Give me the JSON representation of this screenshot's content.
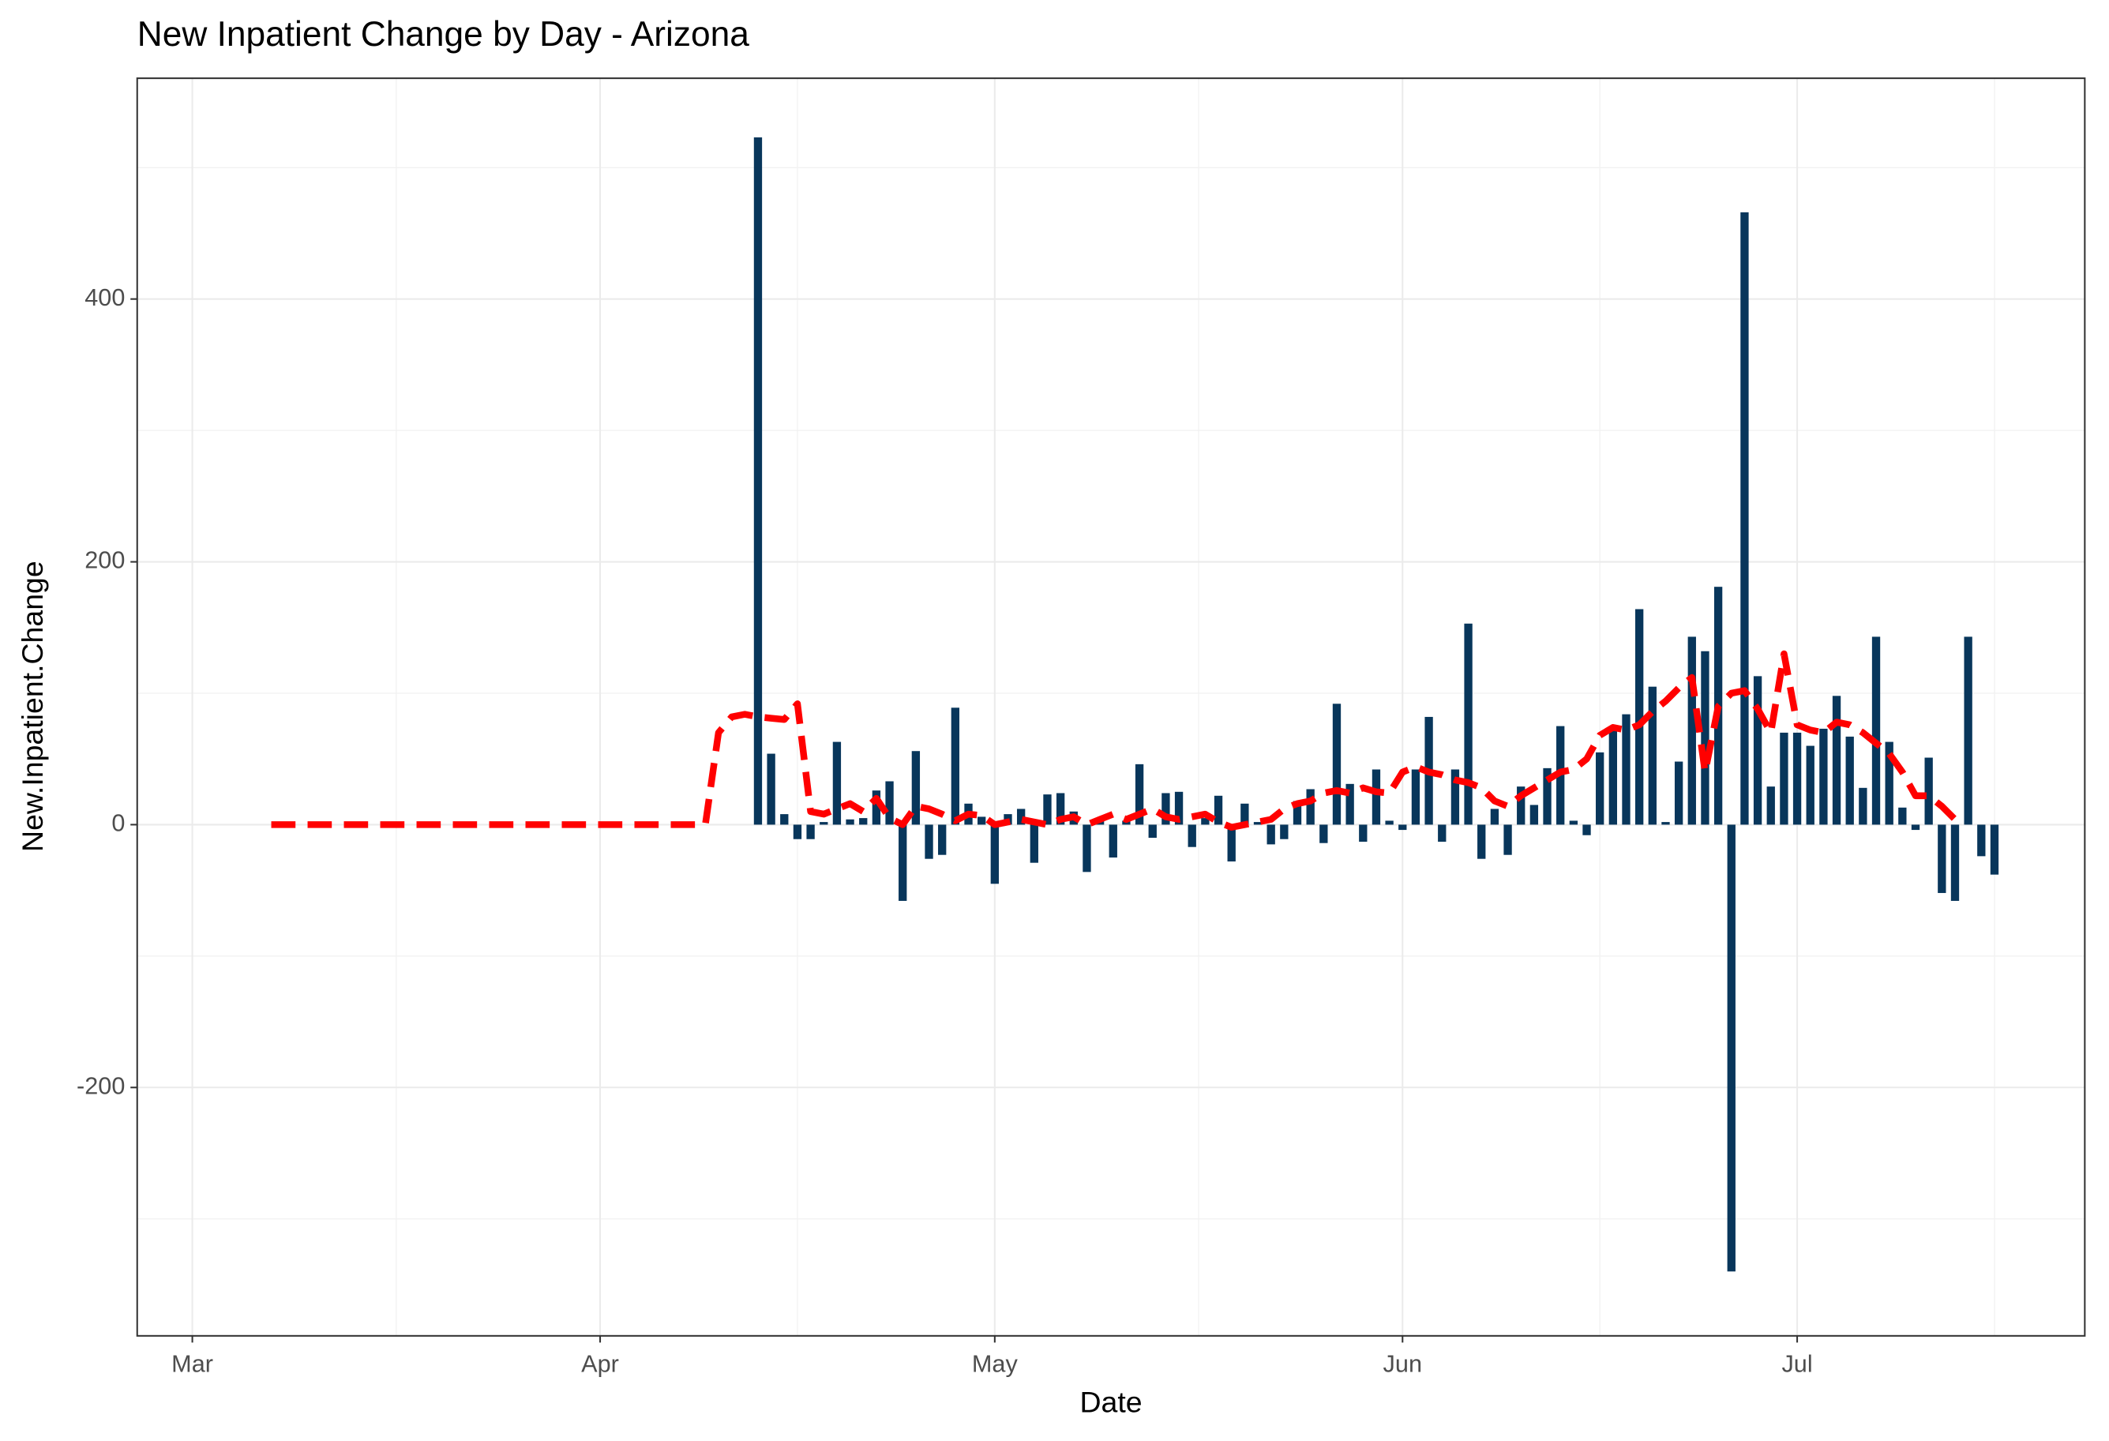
{
  "chart_data": {
    "type": "bar",
    "title": "New Inpatient Change by Day - Arizona",
    "x_label": "Date",
    "y_label": "New.Inpatient.Change",
    "categories": [
      "Mar",
      null,
      null,
      null,
      null,
      null,
      null,
      null,
      null,
      null,
      null,
      null,
      null,
      null,
      null,
      null,
      null,
      null,
      null,
      null,
      null,
      null,
      null,
      null,
      null,
      null,
      null,
      null,
      null,
      null,
      null,
      "Apr",
      null,
      null,
      null,
      null,
      null,
      null,
      null,
      null,
      null,
      null,
      null,
      null,
      null,
      null,
      null,
      null,
      null,
      null,
      null,
      null,
      null,
      null,
      null,
      null,
      null,
      null,
      null,
      null,
      null,
      "May",
      null,
      null,
      null,
      null,
      null,
      null,
      null,
      null,
      null,
      null,
      null,
      null,
      null,
      null,
      null,
      null,
      null,
      null,
      null,
      null,
      null,
      null,
      null,
      null,
      null,
      null,
      null,
      null,
      null,
      null,
      "Jun",
      null,
      null,
      null,
      null,
      null,
      null,
      null,
      null,
      null,
      null,
      null,
      null,
      null,
      null,
      null,
      null,
      null,
      null,
      null,
      null,
      null,
      null,
      null,
      null,
      null,
      null,
      null,
      null,
      null,
      "Jul",
      null,
      null,
      null,
      null,
      null,
      null,
      null,
      null,
      null,
      null,
      null,
      null,
      null,
      null,
      null
    ],
    "series": [
      {
        "type": "bar",
        "color": "#08365b",
        "values": [
          null,
          null,
          null,
          null,
          null,
          null,
          null,
          null,
          null,
          null,
          null,
          null,
          null,
          null,
          null,
          null,
          null,
          null,
          null,
          null,
          null,
          null,
          null,
          null,
          null,
          null,
          null,
          null,
          null,
          null,
          null,
          null,
          null,
          null,
          null,
          null,
          null,
          null,
          null,
          null,
          null,
          null,
          null,
          523,
          54,
          8,
          -11,
          -11,
          2,
          63,
          4,
          5,
          26,
          33,
          -58,
          56,
          -26,
          -23,
          89,
          16,
          6,
          -45,
          8,
          12,
          -29,
          23,
          24,
          10,
          -36,
          4,
          -25,
          3,
          46,
          -10,
          24,
          25,
          -17,
          5,
          22,
          -28,
          16,
          2,
          -15,
          -11,
          18,
          27,
          -14,
          92,
          31,
          -13,
          42,
          3,
          -4,
          42,
          82,
          -13,
          42,
          153,
          -26,
          12,
          -23,
          29,
          15,
          43,
          75,
          3,
          -8,
          55,
          72,
          84,
          164,
          105,
          2,
          48,
          143,
          132,
          181,
          -340,
          466,
          113,
          29,
          70,
          70,
          60,
          73,
          98,
          67,
          28,
          143,
          63,
          13,
          -4,
          51,
          -52,
          -58,
          143,
          -24,
          -38
        ]
      },
      {
        "type": "line",
        "color": "#ff0000",
        "linestyle": "dashed",
        "values": [
          null,
          null,
          null,
          null,
          null,
          null,
          0,
          0,
          0,
          0,
          0,
          0,
          0,
          0,
          0,
          0,
          0,
          0,
          0,
          0,
          0,
          0,
          0,
          0,
          0,
          0,
          0,
          0,
          0,
          0,
          0,
          0,
          0,
          0,
          0,
          0,
          0,
          0,
          0,
          0,
          70,
          82,
          84,
          82,
          81,
          80,
          92,
          10,
          8,
          12,
          16,
          10,
          20,
          5,
          0,
          14,
          12,
          8,
          3,
          8,
          7,
          0,
          2,
          4,
          2,
          0,
          4,
          6,
          0,
          4,
          8,
          4,
          8,
          12,
          6,
          4,
          6,
          8,
          2,
          -2,
          0,
          2,
          4,
          12,
          16,
          18,
          24,
          26,
          24,
          28,
          25,
          24,
          40,
          44,
          40,
          38,
          34,
          32,
          28,
          18,
          14,
          22,
          28,
          34,
          40,
          42,
          50,
          68,
          74,
          72,
          76,
          86,
          94,
          104,
          112,
          40,
          90,
          100,
          102,
          88,
          70,
          130,
          76,
          72,
          70,
          78,
          76,
          70,
          62,
          54,
          40,
          22,
          22,
          14,
          4,
          null,
          null,
          null
        ]
      }
    ],
    "ylim": [
      -389,
      568
    ],
    "yticks": [
      -200,
      0,
      200,
      400
    ],
    "y_minor_ticks": [
      -300,
      -100,
      100,
      300,
      500
    ],
    "grid": true
  }
}
